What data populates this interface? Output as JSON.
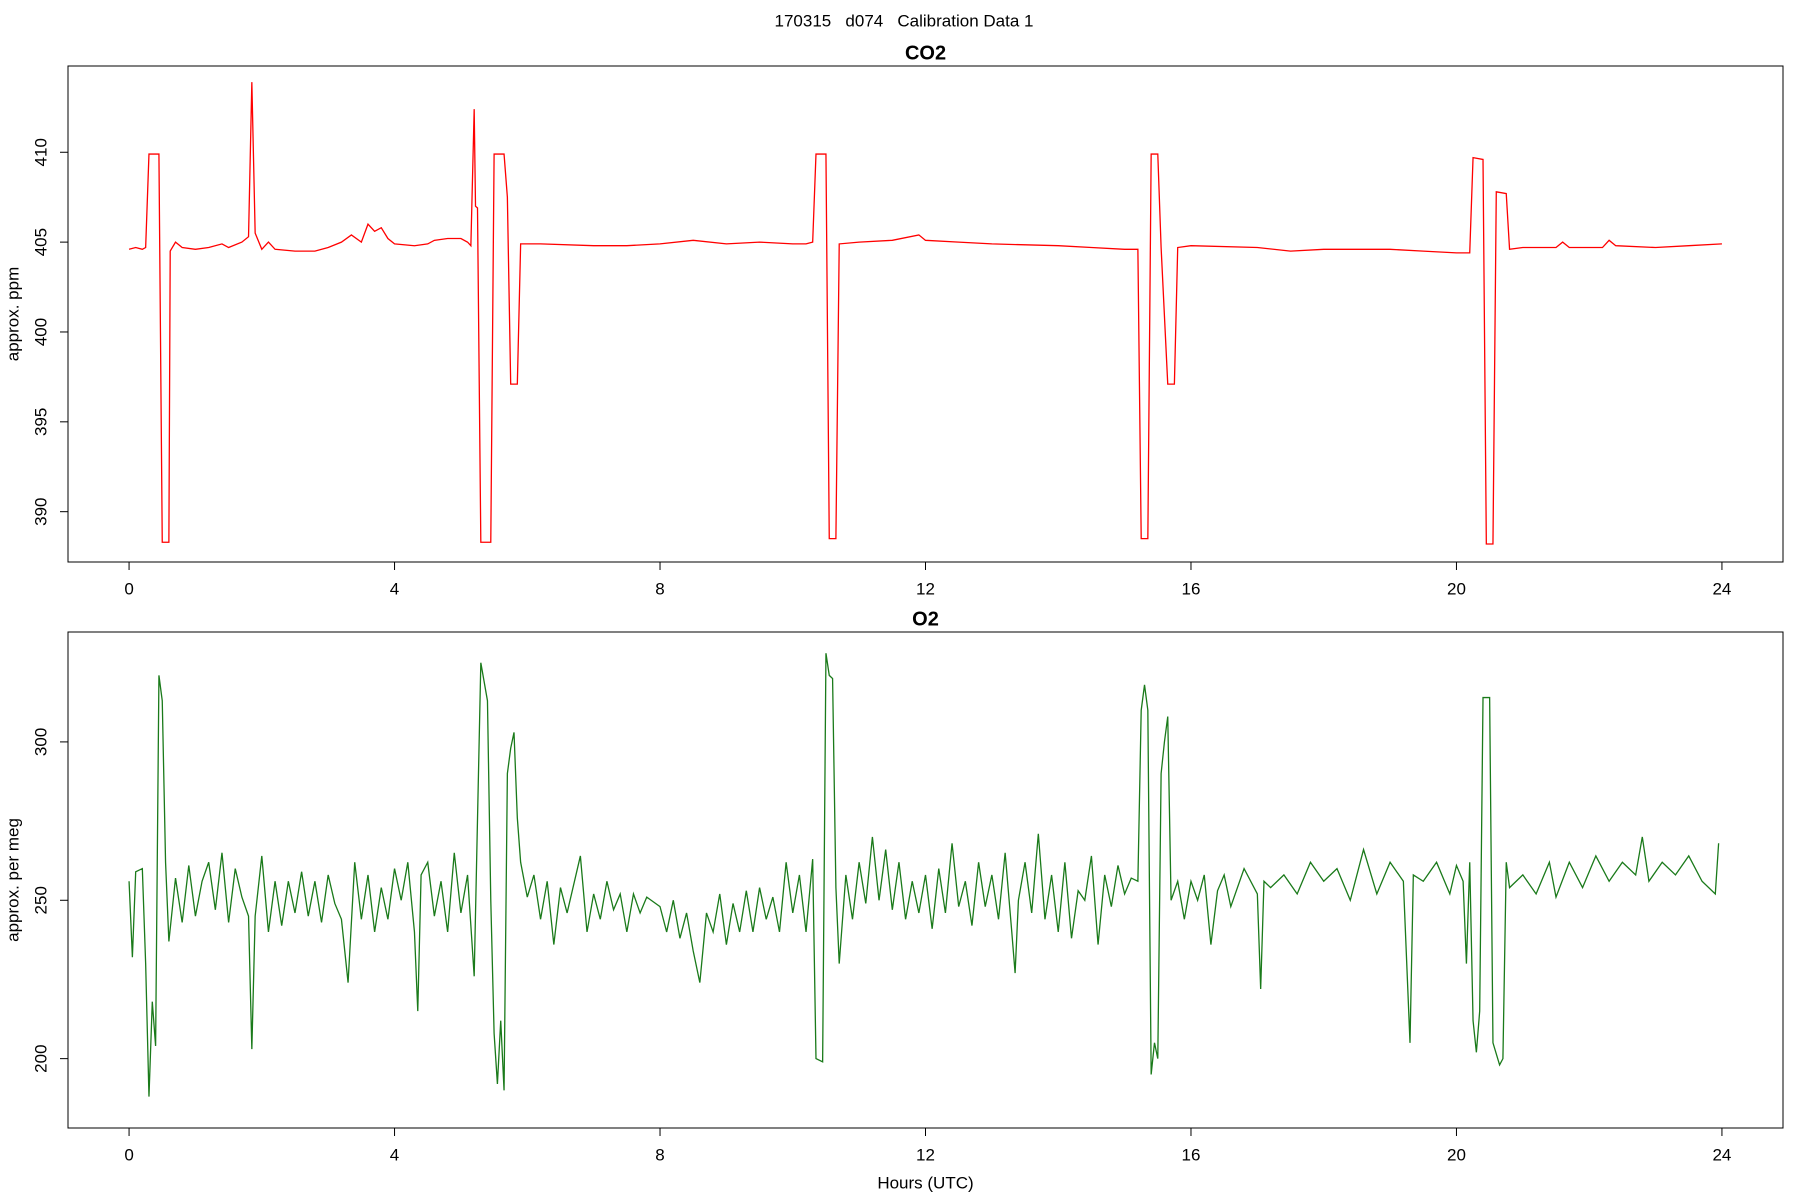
{
  "title": "170315   d074   Calibration Data 1",
  "chart_data": [
    {
      "type": "line",
      "title": "CO2",
      "ylabel": "approx. ppm",
      "color": "#ff0000",
      "xlim": [
        -0.92,
        24.92
      ],
      "xticks": [
        0,
        4,
        8,
        12,
        16,
        20,
        24
      ],
      "ylim": [
        387.2,
        414.8
      ],
      "yticks": [
        390,
        395,
        400,
        405,
        410
      ],
      "x": [
        0.0,
        0.1,
        0.2,
        0.25,
        0.3,
        0.4,
        0.45,
        0.5,
        0.6,
        0.62,
        0.7,
        0.8,
        1.0,
        1.2,
        1.4,
        1.5,
        1.7,
        1.8,
        1.85,
        1.9,
        2.0,
        2.1,
        2.2,
        2.5,
        2.8,
        3.0,
        3.2,
        3.35,
        3.5,
        3.6,
        3.7,
        3.8,
        3.9,
        4.0,
        4.3,
        4.5,
        4.6,
        4.8,
        5.0,
        5.1,
        5.15,
        5.2,
        5.22,
        5.25,
        5.3,
        5.45,
        5.5,
        5.65,
        5.7,
        5.75,
        5.85,
        5.9,
        6.2,
        7,
        7.5,
        8,
        8.5,
        9,
        9.5,
        10,
        10.2,
        10.3,
        10.35,
        10.5,
        10.55,
        10.65,
        10.7,
        11,
        11.5,
        11.9,
        12,
        12.5,
        13,
        14,
        14.5,
        15,
        15.2,
        15.25,
        15.35,
        15.4,
        15.5,
        15.55,
        15.65,
        15.75,
        15.8,
        16,
        17,
        17.5,
        18,
        18.5,
        19,
        19.5,
        20,
        20.2,
        20.25,
        20.4,
        20.45,
        20.55,
        20.6,
        20.75,
        20.8,
        21,
        21.5,
        21.6,
        21.7,
        22.2,
        22.3,
        22.4,
        23,
        23.5,
        24
      ],
      "values": [
        404.6,
        404.7,
        404.6,
        404.7,
        409.9,
        409.9,
        409.9,
        388.3,
        388.3,
        404.5,
        405.0,
        404.7,
        404.6,
        404.7,
        404.9,
        404.7,
        405.0,
        405.3,
        413.9,
        405.5,
        404.6,
        405.0,
        404.6,
        404.5,
        404.5,
        404.7,
        405.0,
        405.4,
        405.0,
        406.0,
        405.6,
        405.8,
        405.2,
        404.9,
        404.8,
        404.9,
        405.1,
        405.2,
        405.2,
        405.0,
        404.8,
        412.4,
        407.0,
        406.9,
        388.3,
        388.3,
        409.9,
        409.9,
        407.5,
        397.1,
        397.1,
        404.9,
        404.9,
        404.8,
        404.8,
        404.9,
        405.1,
        404.9,
        405.0,
        404.9,
        404.9,
        405.0,
        409.9,
        409.9,
        388.5,
        388.5,
        404.9,
        405.0,
        405.1,
        405.4,
        405.1,
        405.0,
        404.9,
        404.8,
        404.7,
        404.6,
        404.6,
        388.5,
        388.5,
        409.9,
        409.9,
        404.7,
        397.1,
        397.1,
        404.7,
        404.8,
        404.7,
        404.5,
        404.6,
        404.6,
        404.6,
        404.5,
        404.4,
        404.4,
        409.7,
        409.6,
        388.2,
        388.2,
        407.8,
        407.7,
        404.6,
        404.7,
        404.7,
        405.0,
        404.7,
        404.7,
        405.1,
        404.8,
        404.7,
        404.8,
        404.9
      ]
    },
    {
      "type": "line",
      "title": "O2",
      "ylabel": "approx. per meg",
      "xlabel": "Hours (UTC)",
      "color": "#1a7a1a",
      "xlim": [
        -0.92,
        24.92
      ],
      "xticks": [
        0,
        4,
        8,
        12,
        16,
        20,
        24
      ],
      "ylim": [
        178.1,
        334.7
      ],
      "yticks": [
        200,
        250,
        300
      ],
      "x": [
        0,
        0.05,
        0.1,
        0.2,
        0.25,
        0.3,
        0.35,
        0.4,
        0.45,
        0.5,
        0.55,
        0.6,
        0.7,
        0.8,
        0.9,
        1.0,
        1.1,
        1.2,
        1.3,
        1.4,
        1.5,
        1.6,
        1.7,
        1.8,
        1.85,
        1.9,
        2.0,
        2.1,
        2.2,
        2.3,
        2.4,
        2.5,
        2.6,
        2.7,
        2.8,
        2.9,
        3.0,
        3.1,
        3.2,
        3.3,
        3.4,
        3.5,
        3.6,
        3.7,
        3.8,
        3.9,
        4.0,
        4.1,
        4.2,
        4.3,
        4.35,
        4.4,
        4.5,
        4.6,
        4.7,
        4.8,
        4.9,
        5.0,
        5.1,
        5.2,
        5.3,
        5.4,
        5.45,
        5.5,
        5.55,
        5.6,
        5.65,
        5.7,
        5.75,
        5.8,
        5.85,
        5.9,
        6.0,
        6.1,
        6.2,
        6.3,
        6.4,
        6.5,
        6.6,
        6.8,
        6.9,
        7.0,
        7.1,
        7.2,
        7.3,
        7.4,
        7.5,
        7.6,
        7.7,
        7.8,
        8.0,
        8.1,
        8.2,
        8.3,
        8.4,
        8.5,
        8.6,
        8.7,
        8.8,
        8.9,
        9.0,
        9.1,
        9.2,
        9.3,
        9.4,
        9.5,
        9.6,
        9.7,
        9.8,
        9.9,
        10.0,
        10.1,
        10.2,
        10.3,
        10.35,
        10.45,
        10.5,
        10.55,
        10.6,
        10.65,
        10.7,
        10.8,
        10.9,
        11.0,
        11.1,
        11.2,
        11.3,
        11.4,
        11.5,
        11.6,
        11.7,
        11.8,
        11.9,
        12.0,
        12.1,
        12.2,
        12.3,
        12.4,
        12.5,
        12.6,
        12.7,
        12.8,
        12.9,
        13.0,
        13.1,
        13.2,
        13.3,
        13.35,
        13.4,
        13.5,
        13.6,
        13.7,
        13.8,
        13.9,
        14.0,
        14.1,
        14.2,
        14.3,
        14.4,
        14.5,
        14.6,
        14.7,
        14.8,
        14.9,
        15.0,
        15.1,
        15.2,
        15.25,
        15.3,
        15.35,
        15.4,
        15.45,
        15.5,
        15.55,
        15.6,
        15.65,
        15.7,
        15.8,
        15.9,
        16.0,
        16.1,
        16.2,
        16.3,
        16.4,
        16.5,
        16.6,
        16.8,
        17.0,
        17.05,
        17.1,
        17.2,
        17.4,
        17.6,
        17.8,
        18.0,
        18.2,
        18.4,
        18.6,
        18.8,
        19.0,
        19.2,
        19.3,
        19.35,
        19.5,
        19.7,
        19.9,
        20.0,
        20.1,
        20.15,
        20.2,
        20.25,
        20.3,
        20.35,
        20.4,
        20.5,
        20.55,
        20.65,
        20.7,
        20.75,
        20.8,
        21.0,
        21.2,
        21.4,
        21.5,
        21.7,
        21.9,
        22.1,
        22.3,
        22.5,
        22.7,
        22.8,
        22.9,
        23.1,
        23.3,
        23.5,
        23.7,
        23.9,
        23.95
      ],
      "values": [
        256,
        232,
        259,
        260,
        230,
        188,
        218,
        204,
        321,
        313,
        262,
        237,
        257,
        243,
        261,
        245,
        256,
        262,
        247,
        265,
        243,
        260,
        251,
        245,
        203,
        245,
        264,
        240,
        256,
        242,
        256,
        246,
        259,
        245,
        256,
        243,
        258,
        249,
        244,
        224,
        262,
        244,
        258,
        240,
        254,
        244,
        260,
        250,
        262,
        240,
        215,
        258,
        262,
        245,
        256,
        240,
        265,
        246,
        258,
        226,
        325,
        313,
        250,
        208,
        192,
        212,
        190,
        290,
        298,
        303,
        276,
        262,
        251,
        258,
        244,
        256,
        236,
        254,
        246,
        264,
        240,
        252,
        244,
        256,
        247,
        252,
        240,
        252,
        246,
        251,
        248,
        240,
        250,
        238,
        246,
        234,
        224,
        246,
        240,
        252,
        236,
        249,
        240,
        253,
        240,
        254,
        244,
        251,
        240,
        262,
        246,
        258,
        240,
        263,
        200,
        199,
        328,
        321,
        320,
        254,
        230,
        258,
        244,
        262,
        249,
        270,
        250,
        266,
        247,
        262,
        244,
        256,
        246,
        258,
        241,
        260,
        246,
        268,
        248,
        256,
        242,
        262,
        248,
        258,
        244,
        265,
        240,
        227,
        250,
        262,
        246,
        271,
        244,
        258,
        240,
        262,
        238,
        253,
        250,
        264,
        236,
        258,
        248,
        261,
        252,
        257,
        256,
        310,
        318,
        310,
        195,
        205,
        200,
        290,
        300,
        308,
        250,
        256,
        244,
        256,
        250,
        258,
        236,
        253,
        258,
        248,
        260,
        252,
        222,
        256,
        254,
        258,
        252,
        262,
        256,
        260,
        250,
        266,
        252,
        262,
        256,
        205,
        258,
        256,
        262,
        252,
        261,
        256,
        230,
        262,
        212,
        202,
        215,
        314,
        314,
        205,
        198,
        200,
        262,
        254,
        258,
        252,
        262,
        251,
        262,
        254,
        264,
        256,
        262,
        258,
        270,
        256,
        262,
        258,
        264,
        256,
        252,
        268
      ]
    }
  ]
}
